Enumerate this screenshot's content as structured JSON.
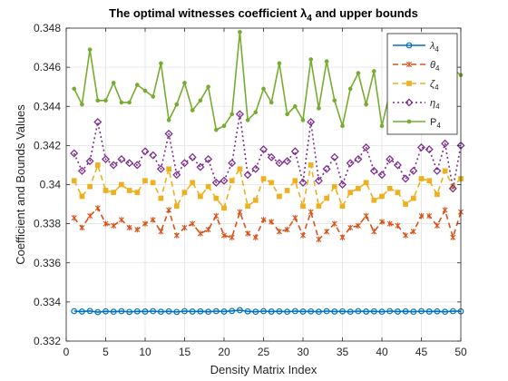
{
  "chart_data": {
    "type": "line",
    "title": "The optimal witnesses coefficient λ",
    "title_subscript": "4",
    "title_suffix": " and upper bounds",
    "xlabel": "Density Matrix Index",
    "ylabel": "Coefficient and Bounds Values",
    "xlim": [
      0,
      50
    ],
    "ylim": [
      0.332,
      0.348
    ],
    "xticks": [
      0,
      5,
      10,
      15,
      20,
      25,
      30,
      35,
      40,
      45,
      50
    ],
    "yticks": [
      0.332,
      0.334,
      0.336,
      0.338,
      0.34,
      0.342,
      0.344,
      0.346,
      0.348
    ],
    "ytick_labels": [
      "0.332",
      "0.334",
      "0.336",
      "0.338",
      "0.34",
      "0.342",
      "0.344",
      "0.346",
      "0.348"
    ],
    "grid": true,
    "legend_position": "top-right",
    "x": [
      1,
      2,
      3,
      4,
      5,
      6,
      7,
      8,
      9,
      10,
      11,
      12,
      13,
      14,
      15,
      16,
      17,
      18,
      19,
      20,
      21,
      22,
      23,
      24,
      25,
      26,
      27,
      28,
      29,
      30,
      31,
      32,
      33,
      34,
      35,
      36,
      37,
      38,
      39,
      40,
      41,
      42,
      43,
      44,
      45,
      46,
      47,
      48,
      49,
      50
    ],
    "series": [
      {
        "name": "λ",
        "name_sub": "4",
        "color": "#0072BD",
        "dash": "",
        "marker": "circle",
        "values": [
          0.33353,
          0.33351,
          0.33354,
          0.33348,
          0.33352,
          0.3335,
          0.33353,
          0.33349,
          0.33352,
          0.33351,
          0.33353,
          0.3335,
          0.33352,
          0.33349,
          0.33353,
          0.33351,
          0.33352,
          0.3335,
          0.33353,
          0.33351,
          0.33354,
          0.33358,
          0.33352,
          0.3335,
          0.33353,
          0.33351,
          0.33352,
          0.3335,
          0.33353,
          0.33351,
          0.33352,
          0.3335,
          0.33353,
          0.33351,
          0.33352,
          0.3335,
          0.33353,
          0.33351,
          0.33352,
          0.3335,
          0.33353,
          0.33351,
          0.33352,
          0.3335,
          0.33353,
          0.33351,
          0.33352,
          0.3335,
          0.33353,
          0.33352
        ]
      },
      {
        "name": "θ",
        "name_sub": "4",
        "color": "#D95319",
        "dash": "6,4",
        "marker": "star",
        "values": [
          0.3383,
          0.3378,
          0.3384,
          0.3388,
          0.338,
          0.3379,
          0.3382,
          0.3378,
          0.3377,
          0.338,
          0.3382,
          0.3376,
          0.3387,
          0.3374,
          0.3378,
          0.338,
          0.3375,
          0.3377,
          0.3384,
          0.3374,
          0.3373,
          0.3386,
          0.3375,
          0.3373,
          0.3382,
          0.3381,
          0.3376,
          0.3377,
          0.3383,
          0.3374,
          0.3386,
          0.3372,
          0.3376,
          0.338,
          0.3373,
          0.3378,
          0.3379,
          0.3384,
          0.3376,
          0.3381,
          0.338,
          0.3379,
          0.3374,
          0.3376,
          0.3384,
          0.3384,
          0.3379,
          0.3387,
          0.3373,
          0.3386
        ]
      },
      {
        "name": "ζ",
        "name_sub": "4",
        "color": "#EDB120",
        "dash": "6,4",
        "marker": "square",
        "values": [
          0.3402,
          0.3394,
          0.3399,
          0.341,
          0.3397,
          0.3396,
          0.34,
          0.3397,
          0.3396,
          0.3402,
          0.3401,
          0.3393,
          0.3408,
          0.3389,
          0.3396,
          0.3401,
          0.3394,
          0.3399,
          0.3393,
          0.3388,
          0.3402,
          0.3408,
          0.3389,
          0.3392,
          0.3403,
          0.3401,
          0.3394,
          0.3397,
          0.3402,
          0.3389,
          0.341,
          0.3389,
          0.3393,
          0.3399,
          0.3389,
          0.3396,
          0.3398,
          0.3401,
          0.3392,
          0.3394,
          0.3398,
          0.3396,
          0.339,
          0.3393,
          0.3403,
          0.3402,
          0.3395,
          0.3407,
          0.3399,
          0.3403
        ]
      },
      {
        "name": "η",
        "name_sub": "4",
        "color": "#7E2F8E",
        "dash": "2,3",
        "marker": "diamond",
        "values": [
          0.3416,
          0.3407,
          0.3412,
          0.3432,
          0.3413,
          0.341,
          0.3413,
          0.3411,
          0.341,
          0.3417,
          0.3415,
          0.3408,
          0.3426,
          0.3405,
          0.3411,
          0.3414,
          0.3409,
          0.3413,
          0.3401,
          0.3402,
          0.3411,
          0.3436,
          0.3405,
          0.3408,
          0.3418,
          0.3414,
          0.3411,
          0.3412,
          0.3417,
          0.3401,
          0.3432,
          0.3402,
          0.3408,
          0.3414,
          0.34,
          0.3411,
          0.3413,
          0.3419,
          0.3407,
          0.3405,
          0.3413,
          0.341,
          0.3403,
          0.3407,
          0.3419,
          0.3418,
          0.3407,
          0.3421,
          0.3398,
          0.342
        ]
      },
      {
        "name": "P",
        "name_sub": "4",
        "color": "#77AC30",
        "dash": "",
        "marker": "dot",
        "values": [
          0.3449,
          0.3441,
          0.3469,
          0.3443,
          0.3443,
          0.3452,
          0.3442,
          0.3442,
          0.3451,
          0.3448,
          0.3445,
          0.3462,
          0.3433,
          0.3441,
          0.3452,
          0.3438,
          0.3443,
          0.345,
          0.3428,
          0.343,
          0.3436,
          0.3478,
          0.3433,
          0.3437,
          0.3449,
          0.3442,
          0.3462,
          0.3436,
          0.344,
          0.3433,
          0.3464,
          0.3439,
          0.3463,
          0.3443,
          0.343,
          0.3449,
          0.3457,
          0.3441,
          0.3458,
          0.343,
          0.3447,
          0.3442,
          0.3439,
          0.3439,
          0.3452,
          0.3444,
          0.3445,
          0.3443,
          0.3459,
          0.3456
        ]
      }
    ]
  }
}
